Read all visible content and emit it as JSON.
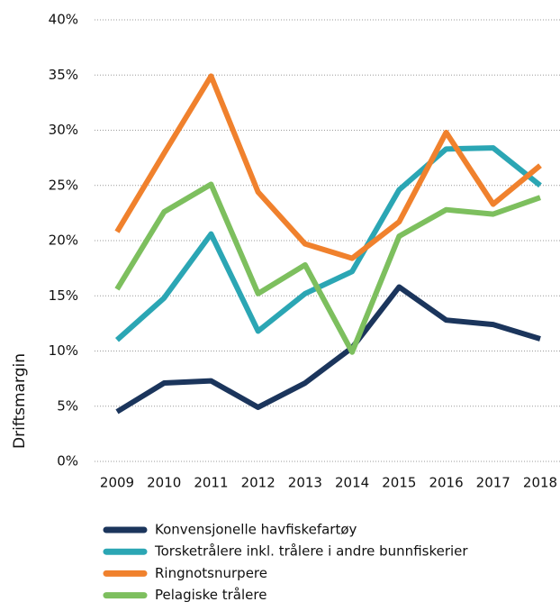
{
  "chart_data": {
    "type": "line",
    "y_label": "Driftsmargin",
    "x": [
      "2009",
      "2010",
      "2011",
      "2012",
      "2013",
      "2014",
      "2015",
      "2016",
      "2017",
      "2018"
    ],
    "series": [
      {
        "name": "Konvensjonelle havfiskefartøy",
        "color": "#1b355c",
        "values": [
          4.5,
          7.1,
          7.3,
          4.9,
          7.1,
          10.3,
          15.8,
          12.8,
          12.4,
          11.1
        ]
      },
      {
        "name": "Torsketrålere inkl. trålere i andre bunnfiskerier",
        "color": "#2ba6b4",
        "values": [
          11.0,
          14.8,
          20.6,
          11.8,
          15.2,
          17.2,
          24.6,
          28.3,
          28.4,
          25.0
        ]
      },
      {
        "name": "Ringnotsnurpere",
        "color": "#f0812d",
        "values": [
          20.8,
          27.9,
          34.9,
          24.4,
          19.7,
          18.4,
          21.7,
          29.8,
          23.3,
          26.8
        ]
      },
      {
        "name": "Pelagiske trålere",
        "color": "#7dbf5e",
        "values": [
          15.6,
          22.6,
          25.1,
          15.2,
          17.8,
          9.9,
          20.4,
          22.8,
          22.4,
          23.9
        ]
      }
    ],
    "ylim": [
      0,
      40
    ],
    "yticks": [
      {
        "value": 0,
        "label": "0%"
      },
      {
        "value": 5,
        "label": "5%"
      },
      {
        "value": 10,
        "label": "10%"
      },
      {
        "value": 15,
        "label": "15%"
      },
      {
        "value": 20,
        "label": "20%"
      },
      {
        "value": 25,
        "label": "25%"
      },
      {
        "value": 30,
        "label": "30%"
      },
      {
        "value": 35,
        "label": "35%"
      },
      {
        "value": 40,
        "label": "40%"
      }
    ],
    "grid": true
  }
}
